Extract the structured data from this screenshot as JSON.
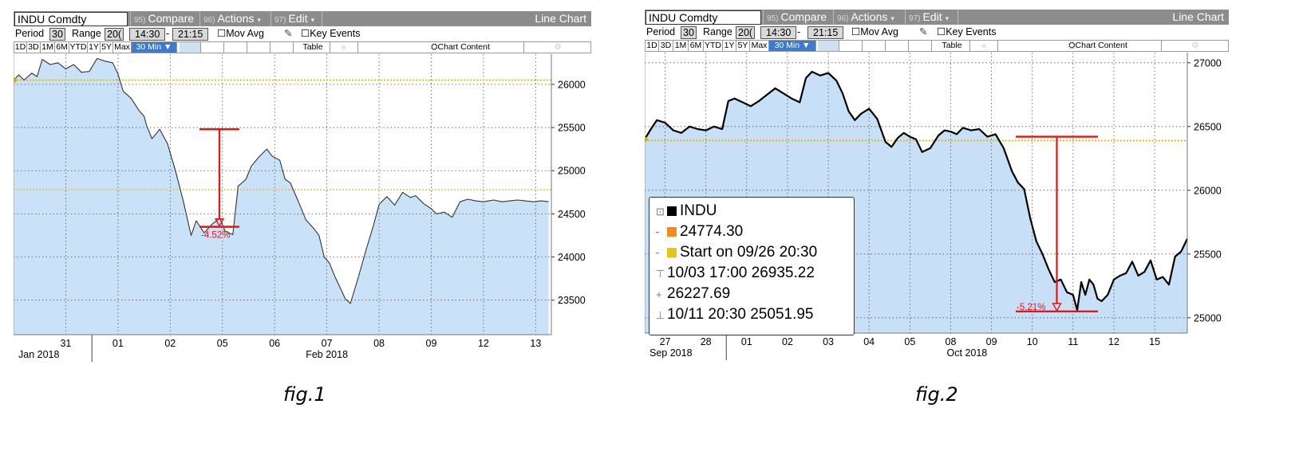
{
  "figures": [
    {
      "toolbar": {
        "ticker": "INDU Comdty",
        "buttons": [
          {
            "num": "95)",
            "label": "Compare"
          },
          {
            "num": "96)",
            "label": "Actions",
            "caret": "▾"
          },
          {
            "num": "97)",
            "label": "Edit",
            "caret": "▾"
          }
        ],
        "view": "Line Chart",
        "period_label": "Period",
        "period_value": "30",
        "range_label": "Range",
        "range_value": "20(",
        "time_from": "14:30",
        "dash": "-",
        "time_to": "21:15",
        "mov_avg": "Mov Avg",
        "key_events": "Key Events",
        "ranges": [
          "1D",
          "3D",
          "1M",
          "6M",
          "YTD",
          "1Y",
          "5Y",
          "Max"
        ],
        "interval": "30 Min ▼",
        "table": "Table",
        "chart_content": "Chart Content"
      },
      "caption": "fig.1"
    },
    {
      "toolbar": {
        "ticker": "INDU Comdty",
        "buttons": [
          {
            "num": "95)",
            "label": "Compare"
          },
          {
            "num": "96)",
            "label": "Actions",
            "caret": "▾"
          },
          {
            "num": "97)",
            "label": "Edit",
            "caret": "▾"
          }
        ],
        "view": "Line Chart",
        "period_label": "Period",
        "period_value": "30",
        "range_label": "Range",
        "range_value": "20(",
        "time_from": "14:30",
        "dash": "-",
        "time_to": "21:15",
        "mov_avg": "Mov Avg",
        "key_events": "Key Events",
        "ranges": [
          "1D",
          "3D",
          "1M",
          "6M",
          "YTD",
          "1Y",
          "5Y",
          "Max"
        ],
        "interval": "30 Min ▼",
        "table": "Table",
        "chart_content": "Chart Content"
      },
      "legend": {
        "items": [
          {
            "text": "INDU",
            "swatch": "#000000",
            "glyph": "⊡"
          },
          {
            "text": "24774.30",
            "swatch": "#f28c1c",
            "glyph": ""
          },
          {
            "text": "Start on 09/26 20:30",
            "swatch": "#e6c41a",
            "glyph": ""
          },
          {
            "text": "10/03 17:00 26935.22",
            "swatch": "",
            "glyph": "⊤"
          },
          {
            "text": "26227.69",
            "swatch": "",
            "glyph": "+"
          },
          {
            "text": "10/11 20:30 25051.95",
            "swatch": "",
            "glyph": "⊥"
          }
        ]
      },
      "caption": "fig.2"
    }
  ],
  "chart_data": [
    {
      "type": "area",
      "series": "INDU",
      "y_ticks": [
        23500,
        24000,
        24500,
        25000,
        25500,
        26000
      ],
      "ylim": [
        23100,
        26350
      ],
      "x_ticks": [
        {
          "x": 1,
          "label": "31"
        },
        {
          "x": 2,
          "label": "01"
        },
        {
          "x": 3,
          "label": "02"
        },
        {
          "x": 4,
          "label": "05"
        },
        {
          "x": 5,
          "label": "06"
        },
        {
          "x": 6,
          "label": "07"
        },
        {
          "x": 7,
          "label": "08"
        },
        {
          "x": 8,
          "label": "09"
        },
        {
          "x": 9,
          "label": "12"
        },
        {
          "x": 10,
          "label": "13"
        }
      ],
      "xlim": [
        0,
        10.3
      ],
      "x_groups": [
        "Jan 2018",
        "Feb 2018"
      ],
      "reference_lines": [
        26050,
        24780
      ],
      "x": [
        0,
        0.1,
        0.2,
        0.35,
        0.45,
        0.55,
        0.7,
        0.85,
        1.0,
        1.15,
        1.3,
        1.45,
        1.6,
        1.75,
        1.9,
        2.0,
        2.1,
        2.25,
        2.4,
        2.5,
        2.55,
        2.65,
        2.8,
        2.95,
        3.1,
        3.25,
        3.4,
        3.5,
        3.65,
        3.8,
        3.95,
        4.05,
        4.2,
        4.3,
        4.45,
        4.55,
        4.7,
        4.85,
        4.95,
        5.1,
        5.2,
        5.3,
        5.45,
        5.6,
        5.75,
        5.85,
        5.95,
        6.05,
        6.15,
        6.25,
        6.35,
        6.45,
        6.6,
        6.75,
        6.9,
        7.0,
        7.15,
        7.3,
        7.45,
        7.6,
        7.7,
        7.85,
        8.0,
        8.1,
        8.25,
        8.4,
        8.55,
        8.7,
        8.85,
        9.0,
        9.1,
        9.2,
        9.35,
        9.5,
        9.65,
        9.8,
        9.95,
        10.1,
        10.25
      ],
      "y": [
        26050,
        26110,
        26050,
        26130,
        26090,
        26290,
        26230,
        26250,
        26180,
        26230,
        26140,
        26150,
        26300,
        26270,
        26250,
        26120,
        25920,
        25840,
        25700,
        25630,
        25520,
        25370,
        25480,
        25310,
        25000,
        24650,
        24250,
        24420,
        24280,
        24380,
        24450,
        24300,
        24260,
        24820,
        24900,
        25050,
        25160,
        25250,
        25170,
        25120,
        24900,
        24860,
        24650,
        24430,
        24330,
        24250,
        24000,
        23930,
        23780,
        23650,
        23520,
        23460,
        23760,
        24080,
        24380,
        24610,
        24700,
        24600,
        24750,
        24690,
        24710,
        24620,
        24560,
        24500,
        24520,
        24460,
        24640,
        24670,
        24650,
        24640,
        24650,
        24660,
        24640,
        24650,
        24660,
        24650,
        24640,
        24650,
        24640
      ],
      "annotation": {
        "label": "-4.52%",
        "from": 25480,
        "to": 24350
      }
    },
    {
      "type": "area",
      "series": "INDU",
      "y_ticks": [
        25000,
        25500,
        26000,
        26500,
        27000
      ],
      "ylim": [
        24880,
        27080
      ],
      "x_ticks": [
        {
          "x": 0.5,
          "label": "27"
        },
        {
          "x": 1.5,
          "label": "28"
        },
        {
          "x": 2.5,
          "label": "01"
        },
        {
          "x": 3.5,
          "label": "02"
        },
        {
          "x": 4.5,
          "label": "03"
        },
        {
          "x": 5.5,
          "label": "04"
        },
        {
          "x": 6.5,
          "label": "05"
        },
        {
          "x": 7.5,
          "label": "08"
        },
        {
          "x": 8.5,
          "label": "09"
        },
        {
          "x": 9.5,
          "label": "10"
        },
        {
          "x": 10.5,
          "label": "11"
        },
        {
          "x": 11.5,
          "label": "12"
        },
        {
          "x": 12.5,
          "label": "15"
        }
      ],
      "xlim": [
        0,
        13.3
      ],
      "x_groups": [
        "Sep 2018",
        "Oct 2018"
      ],
      "reference_lines": [
        26390
      ],
      "x": [
        0,
        0.15,
        0.3,
        0.5,
        0.7,
        0.9,
        1.1,
        1.3,
        1.5,
        1.7,
        1.9,
        2.05,
        2.2,
        2.4,
        2.6,
        2.8,
        3.0,
        3.2,
        3.4,
        3.6,
        3.8,
        3.95,
        4.1,
        4.3,
        4.5,
        4.7,
        4.85,
        5.0,
        5.15,
        5.3,
        5.5,
        5.7,
        5.9,
        6.05,
        6.2,
        6.35,
        6.5,
        6.65,
        6.8,
        7.0,
        7.2,
        7.35,
        7.5,
        7.65,
        7.8,
        8.0,
        8.2,
        8.4,
        8.6,
        8.8,
        9.0,
        9.15,
        9.3,
        9.45,
        9.6,
        9.75,
        9.9,
        10.05,
        10.2,
        10.35,
        10.5,
        10.6,
        10.7,
        10.8,
        10.9,
        11.0,
        11.1,
        11.2,
        11.35,
        11.5,
        11.65,
        11.8,
        11.95,
        12.1,
        12.25,
        12.4,
        12.55,
        12.7,
        12.85,
        13.0,
        13.15,
        13.3
      ],
      "y": [
        26400,
        26480,
        26550,
        26530,
        26470,
        26450,
        26500,
        26480,
        26470,
        26500,
        26480,
        26700,
        26720,
        26690,
        26660,
        26700,
        26750,
        26800,
        26760,
        26720,
        26690,
        26880,
        26930,
        26900,
        26920,
        26860,
        26760,
        26620,
        26550,
        26600,
        26640,
        26560,
        26380,
        26340,
        26410,
        26450,
        26420,
        26400,
        26300,
        26330,
        26430,
        26470,
        26460,
        26440,
        26490,
        26470,
        26480,
        26420,
        26440,
        26330,
        26150,
        26060,
        26010,
        25780,
        25600,
        25500,
        25380,
        25280,
        25300,
        25200,
        25180,
        25060,
        25280,
        25180,
        25300,
        25260,
        25150,
        25130,
        25180,
        25300,
        25330,
        25350,
        25440,
        25330,
        25360,
        25450,
        25300,
        25320,
        25260,
        25480,
        25520,
        25620
      ],
      "annotation": {
        "label": "-5.21%",
        "from": 26420,
        "to": 25050
      }
    }
  ]
}
